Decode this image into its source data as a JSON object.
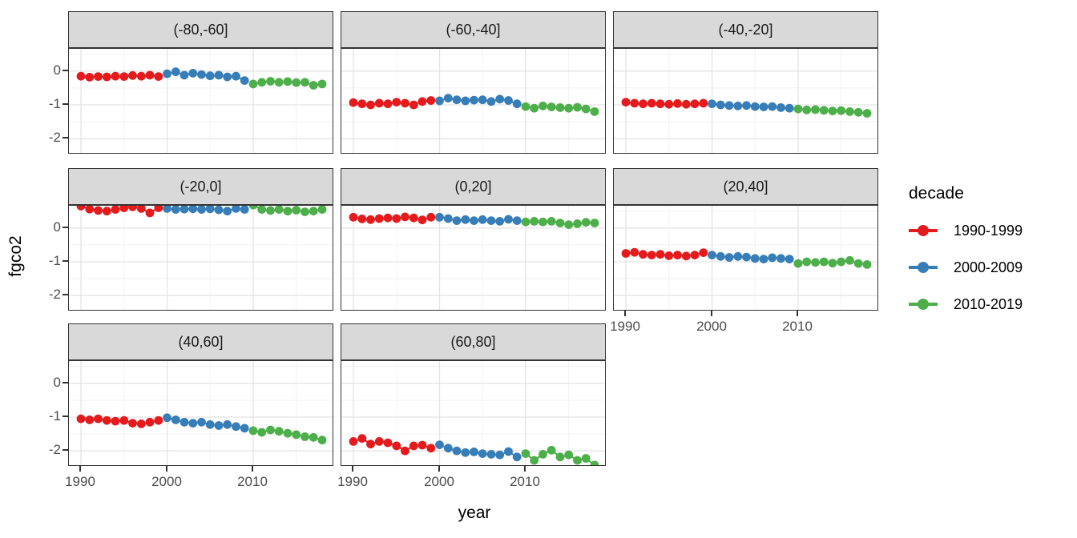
{
  "figure": {
    "x_axis_label": "year",
    "y_axis_label": "fgco2"
  },
  "legend": {
    "title": "decade",
    "items": [
      {
        "label": "1990-1999",
        "color": "#E41A1C"
      },
      {
        "label": "2000-2009",
        "color": "#377EB8"
      },
      {
        "label": "2010-2019",
        "color": "#4DAF4A"
      }
    ]
  },
  "chart_data": {
    "type": "scatter",
    "title": "",
    "xlabel": "year",
    "ylabel": "fgco2",
    "facet_labels": [
      "(-80,-60]",
      "(-60,-40]",
      "(-40,-20]",
      "(-20,0]",
      "(0,20]",
      "(20,40]",
      "(40,60]",
      "(60,80]"
    ],
    "x_ticks": [
      1990,
      2000,
      2010
    ],
    "y_ticks": [
      0,
      -1,
      -2
    ],
    "x_minor_ticks": [
      1995,
      2005,
      2015
    ],
    "y_minor_ticks": [
      0.5,
      -0.5,
      -1.5
    ],
    "xlim": [
      1988.6,
      2019.4
    ],
    "ylim": [
      -2.47,
      0.66
    ],
    "grid": true,
    "legend_position": "right",
    "series_x": {
      "1990-1999": [
        1990,
        1991,
        1992,
        1993,
        1994,
        1995,
        1996,
        1997,
        1998,
        1999
      ],
      "2000-2009": [
        2000,
        2001,
        2002,
        2003,
        2004,
        2005,
        2006,
        2007,
        2008,
        2009
      ],
      "2010-2019": [
        2010,
        2011,
        2012,
        2013,
        2014,
        2015,
        2016,
        2017,
        2018
      ]
    },
    "facets": [
      {
        "label": "(-80,-60]",
        "series": [
          {
            "name": "1990-1999",
            "values": [
              -0.15,
              -0.18,
              -0.16,
              -0.17,
              -0.15,
              -0.16,
              -0.13,
              -0.15,
              -0.12,
              -0.16
            ]
          },
          {
            "name": "2000-2009",
            "values": [
              -0.08,
              -0.02,
              -0.12,
              -0.06,
              -0.1,
              -0.14,
              -0.12,
              -0.17,
              -0.15,
              -0.28
            ]
          },
          {
            "name": "2010-2019",
            "values": [
              -0.38,
              -0.33,
              -0.3,
              -0.33,
              -0.31,
              -0.34,
              -0.33,
              -0.42,
              -0.38
            ]
          }
        ]
      },
      {
        "label": "(-60,-40]",
        "series": [
          {
            "name": "1990-1999",
            "values": [
              -0.93,
              -0.97,
              -1.0,
              -0.95,
              -0.97,
              -0.92,
              -0.95,
              -1.0,
              -0.9,
              -0.87
            ]
          },
          {
            "name": "2000-2009",
            "values": [
              -0.88,
              -0.8,
              -0.85,
              -0.88,
              -0.86,
              -0.85,
              -0.9,
              -0.83,
              -0.87,
              -0.97
            ]
          },
          {
            "name": "2010-2019",
            "values": [
              -1.05,
              -1.1,
              -1.03,
              -1.06,
              -1.08,
              -1.1,
              -1.07,
              -1.12,
              -1.2
            ]
          }
        ]
      },
      {
        "label": "(-40,-20]",
        "series": [
          {
            "name": "1990-1999",
            "values": [
              -0.92,
              -0.95,
              -0.97,
              -0.95,
              -0.97,
              -0.98,
              -0.96,
              -0.98,
              -0.97,
              -0.95
            ]
          },
          {
            "name": "2000-2009",
            "values": [
              -0.97,
              -1.0,
              -1.02,
              -1.03,
              -1.02,
              -1.05,
              -1.06,
              -1.05,
              -1.08,
              -1.1
            ]
          },
          {
            "name": "2010-2019",
            "values": [
              -1.12,
              -1.15,
              -1.14,
              -1.16,
              -1.18,
              -1.17,
              -1.2,
              -1.22,
              -1.25
            ]
          }
        ]
      },
      {
        "label": "(-20,0]",
        "series": [
          {
            "name": "1990-1999",
            "values": [
              0.65,
              0.56,
              0.52,
              0.5,
              0.55,
              0.6,
              0.63,
              0.58,
              0.45,
              0.6
            ]
          },
          {
            "name": "2000-2009",
            "values": [
              0.58,
              0.55,
              0.56,
              0.57,
              0.55,
              0.57,
              0.54,
              0.5,
              0.58,
              0.55
            ]
          },
          {
            "name": "2010-2019",
            "values": [
              0.68,
              0.55,
              0.52,
              0.55,
              0.5,
              0.53,
              0.48,
              0.5,
              0.55
            ]
          }
        ]
      },
      {
        "label": "(0,20]",
        "series": [
          {
            "name": "1990-1999",
            "values": [
              0.32,
              0.27,
              0.25,
              0.28,
              0.3,
              0.28,
              0.33,
              0.3,
              0.24,
              0.32
            ]
          },
          {
            "name": "2000-2009",
            "values": [
              0.32,
              0.28,
              0.22,
              0.25,
              0.22,
              0.25,
              0.22,
              0.2,
              0.26,
              0.22
            ]
          },
          {
            "name": "2010-2019",
            "values": [
              0.18,
              0.2,
              0.18,
              0.2,
              0.15,
              0.1,
              0.13,
              0.17,
              0.15
            ]
          }
        ]
      },
      {
        "label": "(20,40]",
        "series": [
          {
            "name": "1990-1999",
            "values": [
              -0.75,
              -0.72,
              -0.78,
              -0.8,
              -0.78,
              -0.82,
              -0.8,
              -0.83,
              -0.8,
              -0.73
            ]
          },
          {
            "name": "2000-2009",
            "values": [
              -0.8,
              -0.84,
              -0.87,
              -0.84,
              -0.86,
              -0.9,
              -0.92,
              -0.88,
              -0.9,
              -0.92
            ]
          },
          {
            "name": "2010-2019",
            "values": [
              -1.05,
              -1.0,
              -1.02,
              -1.0,
              -1.04,
              -1.0,
              -0.96,
              -1.05,
              -1.08
            ]
          }
        ]
      },
      {
        "label": "(40,60]",
        "series": [
          {
            "name": "1990-1999",
            "values": [
              -1.05,
              -1.08,
              -1.05,
              -1.1,
              -1.12,
              -1.1,
              -1.18,
              -1.2,
              -1.15,
              -1.1
            ]
          },
          {
            "name": "2000-2009",
            "values": [
              -1.02,
              -1.08,
              -1.15,
              -1.18,
              -1.15,
              -1.22,
              -1.25,
              -1.22,
              -1.28,
              -1.33
            ]
          },
          {
            "name": "2010-2019",
            "values": [
              -1.4,
              -1.45,
              -1.38,
              -1.42,
              -1.48,
              -1.52,
              -1.58,
              -1.6,
              -1.68
            ]
          }
        ]
      },
      {
        "label": "(60,80]",
        "series": [
          {
            "name": "1990-1999",
            "values": [
              -1.72,
              -1.63,
              -1.8,
              -1.72,
              -1.76,
              -1.85,
              -2.0,
              -1.85,
              -1.83,
              -1.92
            ]
          },
          {
            "name": "2000-2009",
            "values": [
              -1.82,
              -1.92,
              -2.0,
              -2.05,
              -2.03,
              -2.08,
              -2.1,
              -2.12,
              -2.02,
              -2.18
            ]
          },
          {
            "name": "2010-2019",
            "values": [
              -2.08,
              -2.28,
              -2.1,
              -1.98,
              -2.18,
              -2.12,
              -2.28,
              -2.22,
              -2.42
            ]
          }
        ]
      }
    ]
  },
  "colors": {
    "strip_fill": "#d9d9d9",
    "strip_border": "#333333",
    "panel_border": "#333333",
    "grid_major": "#e4e4e4",
    "grid_minor": "#f2f2f2",
    "axis_text": "#4d4d4d",
    "title_text": "#000000"
  }
}
